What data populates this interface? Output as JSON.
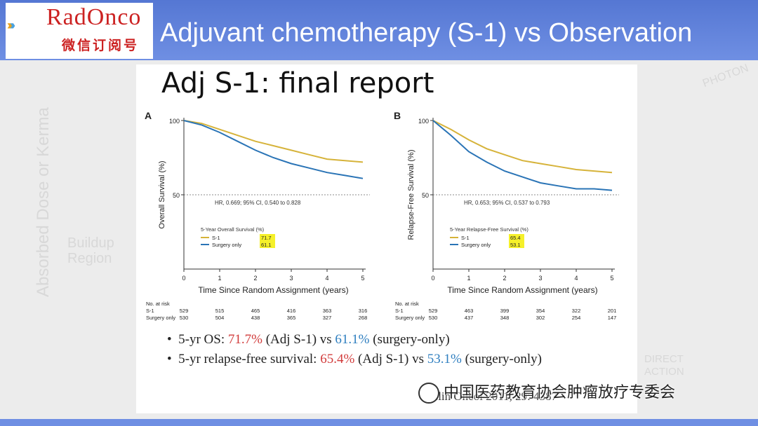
{
  "header": {
    "logo_text": "RadOnco",
    "logo_sub": "微信订阅号",
    "title": "Adjuvant chemotherapy (S-1) vs Observation"
  },
  "background": {
    "vertical_label": "Absorbed Dose or Kerma",
    "buildup_label": "Buildup Region",
    "photon_label": "PHOTON",
    "direct_label": "DIRECT ACTION"
  },
  "slide": {
    "title": "Adj S-1: final report",
    "citation": "J Clin Oncol 2011, 29: 4387",
    "bullets": {
      "b1_prefix": "5-yr OS: ",
      "b1_val1": "71.7%",
      "b1_mid": " (Adj S-1) vs ",
      "b1_val2": "61.1%",
      "b1_suffix": " (surgery-only)",
      "b2_prefix": "5-yr relapse-free survival: ",
      "b2_val1": "65.4%",
      "b2_mid": " (Adj S-1) vs ",
      "b2_val2": "53.1%",
      "b2_suffix": " (surgery-only)"
    }
  },
  "watermark": "中国医药教育协会肿瘤放疗专委会",
  "colors": {
    "s1": "#d6b33a",
    "surgery": "#2a74b6",
    "red": "#d23c3c",
    "blue": "#2f7fc0"
  },
  "chart_data": [
    {
      "type": "line",
      "panel": "A",
      "ylabel": "Overall Survival (%)",
      "xlabel": "Time Since Random Assignment (years)",
      "xlim": [
        0,
        5
      ],
      "ylim": [
        0,
        100
      ],
      "x_ticks": [
        "0",
        "1",
        "2",
        "3",
        "4",
        "5"
      ],
      "y_ticks": [
        "100",
        "50"
      ],
      "reference_line": 50,
      "annotation": "HR, 0.669; 95% CI, 0.540 to 0.828",
      "legend_title": "5-Year Overall Survival (%)",
      "series": [
        {
          "name": "S-1",
          "legend_value": "71.7",
          "x": [
            0,
            0.5,
            1,
            1.5,
            2,
            2.5,
            3,
            3.5,
            4,
            4.5,
            5
          ],
          "y": [
            100,
            98,
            94,
            90,
            86,
            83,
            80,
            77,
            74,
            73,
            72
          ]
        },
        {
          "name": "Surgery only",
          "legend_value": "61.1",
          "x": [
            0,
            0.5,
            1,
            1.5,
            2,
            2.5,
            3,
            3.5,
            4,
            4.5,
            5
          ],
          "y": [
            100,
            97,
            92,
            86,
            80,
            75,
            71,
            68,
            65,
            63,
            61
          ]
        }
      ],
      "risk_table": {
        "label": "No. at risk",
        "rows": [
          {
            "name": "S-1",
            "values": [
              "529",
              "515",
              "465",
              "416",
              "363",
              "316"
            ]
          },
          {
            "name": "Surgery only",
            "values": [
              "530",
              "504",
              "438",
              "365",
              "327",
              "268"
            ]
          }
        ]
      }
    },
    {
      "type": "line",
      "panel": "B",
      "ylabel": "Relapse-Free Survival (%)",
      "xlabel": "Time Since Random Assignment (years)",
      "xlim": [
        0,
        5
      ],
      "ylim": [
        0,
        100
      ],
      "x_ticks": [
        "0",
        "1",
        "2",
        "3",
        "4",
        "5"
      ],
      "y_ticks": [
        "100",
        "50"
      ],
      "reference_line": 50,
      "annotation": "HR, 0.653; 95% CI, 0.537 to 0.793",
      "legend_title": "5-Year Relapse-Free Survival (%)",
      "series": [
        {
          "name": "S-1",
          "legend_value": "65.4",
          "x": [
            0,
            0.5,
            1,
            1.5,
            2,
            2.5,
            3,
            3.5,
            4,
            4.5,
            5
          ],
          "y": [
            100,
            94,
            87,
            81,
            77,
            73,
            71,
            69,
            67,
            66,
            65
          ]
        },
        {
          "name": "Surgery only",
          "legend_value": "53.1",
          "x": [
            0,
            0.5,
            1,
            1.5,
            2,
            2.5,
            3,
            3.5,
            4,
            4.5,
            5
          ],
          "y": [
            100,
            90,
            79,
            72,
            66,
            62,
            58,
            56,
            54,
            54,
            53
          ]
        }
      ],
      "risk_table": {
        "label": "No. at risk",
        "rows": [
          {
            "name": "S-1",
            "values": [
              "529",
              "463",
              "399",
              "354",
              "322",
              "201"
            ]
          },
          {
            "name": "Surgery only",
            "values": [
              "530",
              "437",
              "348",
              "302",
              "254",
              "147"
            ]
          }
        ]
      }
    }
  ]
}
